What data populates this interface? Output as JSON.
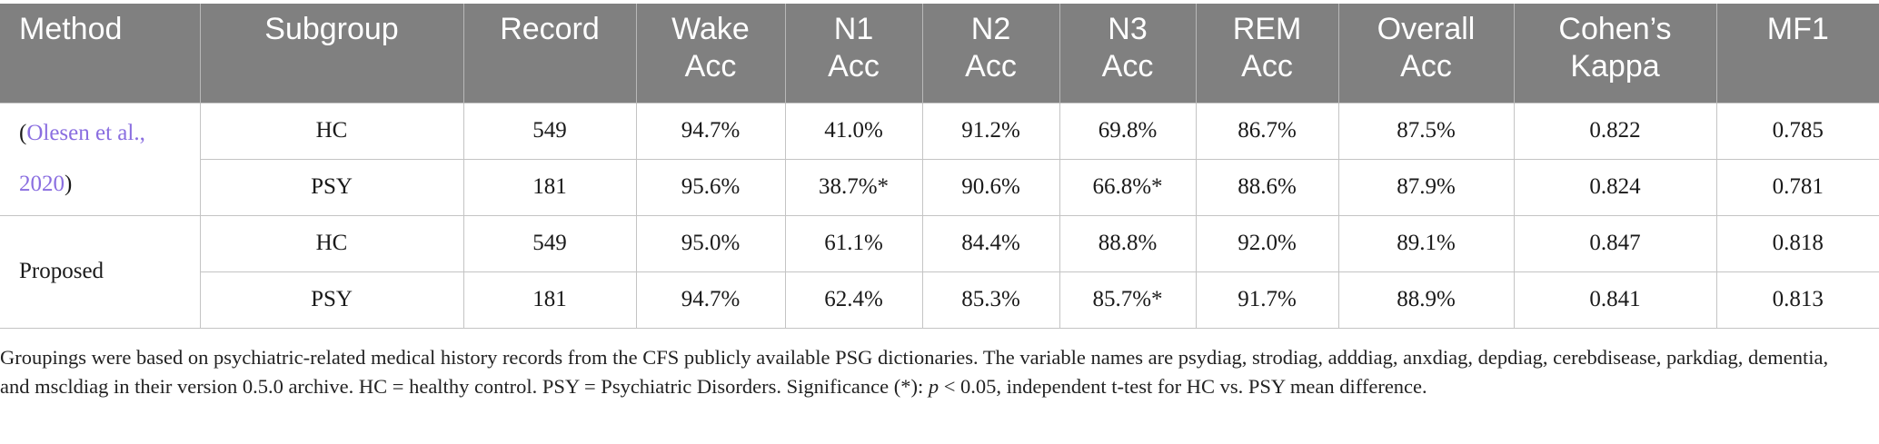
{
  "table": {
    "headers": [
      [
        "Method"
      ],
      [
        "Subgroup"
      ],
      [
        "Record"
      ],
      [
        "Wake",
        "Acc"
      ],
      [
        "N1",
        "Acc"
      ],
      [
        "N2",
        "Acc"
      ],
      [
        "N3",
        "Acc"
      ],
      [
        "REM",
        "Acc"
      ],
      [
        "Overall",
        "Acc"
      ],
      [
        "Cohen’s",
        "Kappa"
      ],
      [
        "MF1"
      ]
    ],
    "groups": [
      {
        "method_prefix": "(",
        "method_link": "Olesen et al., 2020",
        "method_suffix": ")",
        "rows": [
          [
            "HC",
            "549",
            "94.7%",
            "41.0%",
            "91.2%",
            "69.8%",
            "86.7%",
            "87.5%",
            "0.822",
            "0.785"
          ],
          [
            "PSY",
            "181",
            "95.6%",
            "38.7%*",
            "90.6%",
            "66.8%*",
            "88.6%",
            "87.9%",
            "0.824",
            "0.781"
          ]
        ]
      },
      {
        "method_prefix": "Proposed",
        "method_link": "",
        "method_suffix": "",
        "rows": [
          [
            "HC",
            "549",
            "95.0%",
            "61.1%",
            "84.4%",
            "88.8%",
            "92.0%",
            "89.1%",
            "0.847",
            "0.818"
          ],
          [
            "PSY",
            "181",
            "94.7%",
            "62.4%",
            "85.3%",
            "85.7%*",
            "91.7%",
            "88.9%",
            "0.841",
            "0.813"
          ]
        ]
      }
    ]
  },
  "footnote": {
    "text_1": "Groupings were based on psychiatric-related medical history records from the CFS publicly available PSG dictionaries. The variable names are psydiag, strodiag, adddiag, anxdiag, depdiag, cerebdisease, parkdiag, dementia, and mscldiag in their version 0.5.0 archive. HC = healthy control. PSY = Psychiatric Disorders. Significance (*): ",
    "p_symbol": "p",
    "text_2": " < 0.05, independent t-test for HC vs. PSY mean difference."
  }
}
